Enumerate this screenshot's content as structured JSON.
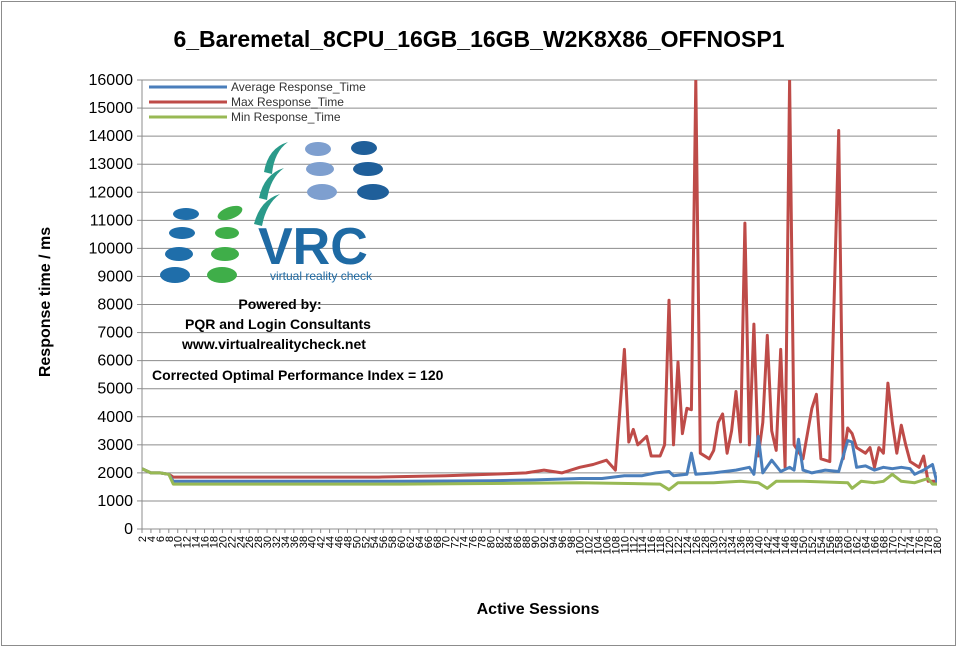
{
  "chart_data": {
    "type": "line",
    "title": "6_Baremetal_8CPU_16GB_16GB_W2K8X86_OFFNOSP1",
    "xlabel": "Active Sessions",
    "ylabel": "Response time / ms",
    "ylim": [
      0,
      16000
    ],
    "yticks": [
      0,
      1000,
      2000,
      3000,
      4000,
      5000,
      6000,
      7000,
      8000,
      9000,
      10000,
      11000,
      12000,
      13000,
      14000,
      15000,
      16000
    ],
    "x_range": [
      2,
      180
    ],
    "grid": "horizontal",
    "legend": "top-left",
    "series": [
      {
        "name": "Average Response_Time",
        "color": "#4a7ebb",
        "points": [
          [
            2,
            2150
          ],
          [
            4,
            2000
          ],
          [
            6,
            2000
          ],
          [
            8,
            1950
          ],
          [
            9,
            1700
          ],
          [
            20,
            1700
          ],
          [
            40,
            1700
          ],
          [
            60,
            1700
          ],
          [
            80,
            1720
          ],
          [
            90,
            1750
          ],
          [
            100,
            1800
          ],
          [
            105,
            1800
          ],
          [
            110,
            1900
          ],
          [
            114,
            1900
          ],
          [
            117,
            2000
          ],
          [
            120,
            2050
          ],
          [
            121,
            1900
          ],
          [
            124,
            1950
          ],
          [
            125,
            2700
          ],
          [
            126,
            1950
          ],
          [
            130,
            2000
          ],
          [
            135,
            2100
          ],
          [
            138,
            2200
          ],
          [
            139,
            1950
          ],
          [
            140,
            3300
          ],
          [
            141,
            2000
          ],
          [
            143,
            2450
          ],
          [
            145,
            2050
          ],
          [
            147,
            2200
          ],
          [
            148,
            2100
          ],
          [
            149,
            3200
          ],
          [
            150,
            2100
          ],
          [
            152,
            2000
          ],
          [
            155,
            2100
          ],
          [
            158,
            2050
          ],
          [
            160,
            3150
          ],
          [
            161,
            3100
          ],
          [
            162,
            2200
          ],
          [
            164,
            2250
          ],
          [
            166,
            2100
          ],
          [
            168,
            2200
          ],
          [
            170,
            2150
          ],
          [
            172,
            2200
          ],
          [
            174,
            2150
          ],
          [
            175,
            1950
          ],
          [
            177,
            2100
          ],
          [
            179,
            2300
          ],
          [
            180,
            1650
          ]
        ]
      },
      {
        "name": "Max Response_Time",
        "color": "#be4b48",
        "points": [
          [
            2,
            2150
          ],
          [
            4,
            2000
          ],
          [
            6,
            2000
          ],
          [
            8,
            1950
          ],
          [
            9,
            1850
          ],
          [
            20,
            1850
          ],
          [
            40,
            1850
          ],
          [
            55,
            1850
          ],
          [
            70,
            1900
          ],
          [
            80,
            1950
          ],
          [
            88,
            2000
          ],
          [
            92,
            2100
          ],
          [
            96,
            2000
          ],
          [
            100,
            2200
          ],
          [
            103,
            2300
          ],
          [
            106,
            2450
          ],
          [
            108,
            2100
          ],
          [
            110,
            6400
          ],
          [
            111,
            3100
          ],
          [
            112,
            3550
          ],
          [
            113,
            3000
          ],
          [
            115,
            3300
          ],
          [
            116,
            2600
          ],
          [
            118,
            2600
          ],
          [
            119,
            3000
          ],
          [
            120,
            8150
          ],
          [
            121,
            3000
          ],
          [
            122,
            5950
          ],
          [
            123,
            3400
          ],
          [
            124,
            4300
          ],
          [
            125,
            4250
          ],
          [
            126,
            16000
          ],
          [
            127,
            2700
          ],
          [
            129,
            2500
          ],
          [
            130,
            2800
          ],
          [
            131,
            3800
          ],
          [
            132,
            4100
          ],
          [
            133,
            2700
          ],
          [
            134,
            3500
          ],
          [
            135,
            4900
          ],
          [
            136,
            3100
          ],
          [
            137,
            10900
          ],
          [
            138,
            3000
          ],
          [
            139,
            7300
          ],
          [
            140,
            2600
          ],
          [
            141,
            3800
          ],
          [
            142,
            6900
          ],
          [
            143,
            3500
          ],
          [
            144,
            2800
          ],
          [
            145,
            6400
          ],
          [
            146,
            2200
          ],
          [
            147,
            16000
          ],
          [
            148,
            3000
          ],
          [
            150,
            2500
          ],
          [
            152,
            4300
          ],
          [
            153,
            4800
          ],
          [
            154,
            2500
          ],
          [
            156,
            2400
          ],
          [
            158,
            14200
          ],
          [
            159,
            2500
          ],
          [
            160,
            3600
          ],
          [
            161,
            3400
          ],
          [
            162,
            2900
          ],
          [
            164,
            2700
          ],
          [
            165,
            2900
          ],
          [
            166,
            2200
          ],
          [
            167,
            2900
          ],
          [
            168,
            2700
          ],
          [
            169,
            5200
          ],
          [
            170,
            3800
          ],
          [
            171,
            2700
          ],
          [
            172,
            3700
          ],
          [
            173,
            3000
          ],
          [
            174,
            2400
          ],
          [
            176,
            2200
          ],
          [
            177,
            2600
          ],
          [
            178,
            1700
          ],
          [
            180,
            1700
          ]
        ]
      },
      {
        "name": "Min Response_Time",
        "color": "#98b954",
        "points": [
          [
            2,
            2150
          ],
          [
            4,
            2000
          ],
          [
            6,
            2000
          ],
          [
            8,
            1950
          ],
          [
            9,
            1600
          ],
          [
            20,
            1600
          ],
          [
            40,
            1600
          ],
          [
            60,
            1600
          ],
          [
            80,
            1620
          ],
          [
            100,
            1650
          ],
          [
            118,
            1600
          ],
          [
            120,
            1400
          ],
          [
            122,
            1650
          ],
          [
            130,
            1650
          ],
          [
            136,
            1700
          ],
          [
            140,
            1650
          ],
          [
            142,
            1450
          ],
          [
            144,
            1700
          ],
          [
            150,
            1700
          ],
          [
            160,
            1650
          ],
          [
            161,
            1450
          ],
          [
            163,
            1700
          ],
          [
            166,
            1650
          ],
          [
            168,
            1700
          ],
          [
            170,
            1950
          ],
          [
            172,
            1700
          ],
          [
            175,
            1650
          ],
          [
            178,
            1800
          ],
          [
            179,
            1600
          ],
          [
            180,
            1600
          ]
        ]
      }
    ],
    "xticks": [
      2,
      4,
      6,
      8,
      10,
      12,
      14,
      16,
      18,
      20,
      22,
      24,
      26,
      28,
      30,
      32,
      34,
      36,
      38,
      40,
      42,
      44,
      46,
      48,
      50,
      52,
      54,
      56,
      58,
      60,
      62,
      64,
      66,
      68,
      70,
      72,
      74,
      76,
      78,
      80,
      82,
      84,
      86,
      88,
      90,
      92,
      94,
      96,
      98,
      100,
      102,
      104,
      106,
      108,
      110,
      112,
      114,
      116,
      118,
      120,
      122,
      124,
      126,
      128,
      130,
      132,
      134,
      136,
      138,
      140,
      142,
      144,
      146,
      148,
      150,
      152,
      154,
      156,
      158,
      160,
      162,
      164,
      166,
      168,
      170,
      172,
      174,
      176,
      178,
      180
    ]
  },
  "annotations": {
    "powered_by": "Powered by:",
    "consultants": "PQR and Login Consultants",
    "website": "www.virtualrealitycheck.net",
    "index_text": "Corrected Optimal Performance Index = 120",
    "logo_brand": "VRC",
    "logo_tagline": "virtual reality check"
  }
}
